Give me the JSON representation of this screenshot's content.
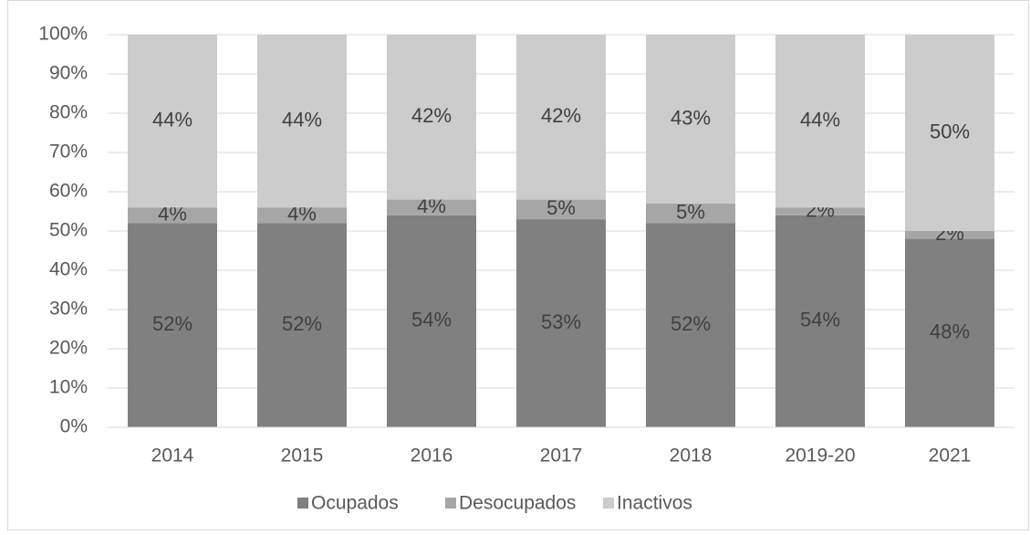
{
  "chart_data": {
    "type": "bar",
    "stacked": true,
    "categories": [
      "2014",
      "2015",
      "2016",
      "2017",
      "2018",
      "2019-20",
      "2021"
    ],
    "series": [
      {
        "name": "Ocupados",
        "color": "#808080",
        "values": [
          52,
          52,
          54,
          53,
          52,
          54,
          48
        ],
        "value_labels": [
          "52%",
          "52%",
          "54%",
          "53%",
          "52%",
          "54%",
          "48%"
        ]
      },
      {
        "name": "Desocupados",
        "color": "#a6a6a6",
        "values": [
          4,
          4,
          4,
          5,
          5,
          2,
          2
        ],
        "value_labels": [
          "4%",
          "4%",
          "4%",
          "5%",
          "5%",
          "2%",
          "2%"
        ]
      },
      {
        "name": "Inactivos",
        "color": "#cccccc",
        "values": [
          44,
          44,
          42,
          42,
          43,
          44,
          50
        ],
        "value_labels": [
          "44%",
          "44%",
          "42%",
          "42%",
          "43%",
          "44%",
          "50%"
        ]
      }
    ],
    "ylim": [
      0,
      100
    ],
    "yticks": [
      {
        "value": 0,
        "label": "0%"
      },
      {
        "value": 10,
        "label": "10%"
      },
      {
        "value": 20,
        "label": "20%"
      },
      {
        "value": 30,
        "label": "30%"
      },
      {
        "value": 40,
        "label": "40%"
      },
      {
        "value": 50,
        "label": "50%"
      },
      {
        "value": 60,
        "label": "60%"
      },
      {
        "value": 70,
        "label": "70%"
      },
      {
        "value": 80,
        "label": "80%"
      },
      {
        "value": 90,
        "label": "90%"
      },
      {
        "value": 100,
        "label": "100%"
      }
    ],
    "grid": true,
    "legend": "bottom"
  }
}
